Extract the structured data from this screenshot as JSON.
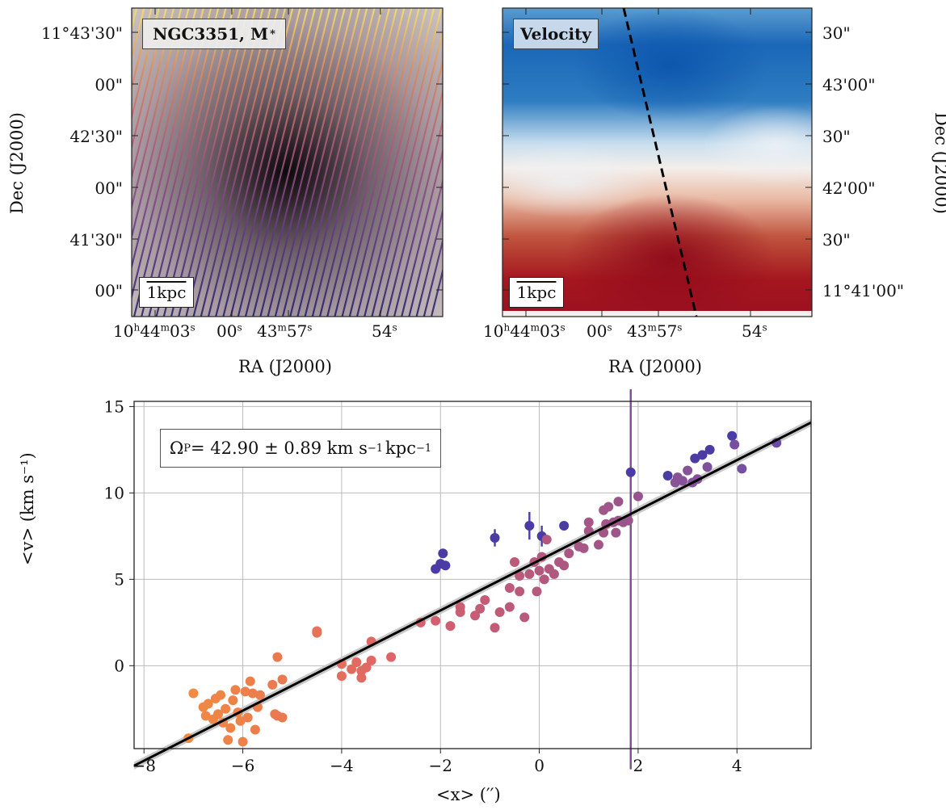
{
  "panels": {
    "left": {
      "label": "NGC3351, M",
      "label_sub": "*",
      "scalebar": "1kpc",
      "xlabel": "RA (J2000)",
      "ylabel": "Dec (J2000)",
      "xticks": [
        {
          "main": "10",
          "sup1": "h",
          "mid": "44",
          "sup2": "m",
          "end": "03",
          "sup3": "s"
        },
        {
          "main": "00",
          "sup1": "s"
        },
        {
          "main": "43",
          "sup1": "m",
          "mid": "57",
          "sup2": "s"
        },
        {
          "main": "54",
          "sup1": "s"
        }
      ],
      "yticks": [
        "11°43'30\"",
        "00\"",
        "42'30\"",
        "00\"",
        "41'30\"",
        "00\""
      ]
    },
    "right": {
      "label": "Velocity",
      "scalebar": "1kpc",
      "xlabel": "RA (J2000)",
      "ylabel": "Dec (J2000)",
      "xticks": [
        {
          "main": "10",
          "sup1": "h",
          "mid": "44",
          "sup2": "m",
          "end": "03",
          "sup3": "s"
        },
        {
          "main": "00",
          "sup1": "s"
        },
        {
          "main": "43",
          "sup1": "m",
          "mid": "57",
          "sup2": "s"
        },
        {
          "main": "54",
          "sup1": "s"
        }
      ],
      "yticks": [
        "30\"",
        "43'00\"",
        "30\"",
        "42'00\"",
        "30\"",
        "11°41'00\""
      ]
    }
  },
  "colors": {
    "velocity_negative": "#2166ac",
    "velocity_positive": "#b2182b",
    "fit_line": "#000000",
    "outlier_errorbar": "#7a4e8a"
  },
  "chart_data": {
    "type": "scatter",
    "title": "",
    "xlabel": "<x> (′′)",
    "ylabel": "<v> (km s⁻¹)",
    "xlim": [
      -8.2,
      5.5
    ],
    "ylim": [
      -4.8,
      15.3
    ],
    "xticks": [
      -8,
      -6,
      -4,
      -2,
      0,
      2,
      4
    ],
    "yticks": [
      0,
      5,
      10,
      15
    ],
    "grid": true,
    "annotation": {
      "pre": "Ω",
      "sub": "P",
      "mid": " = 42.90 ± 0.89 km s",
      "sup1": "−1",
      "post": "kpc",
      "sup2": "−1"
    },
    "fit_line": {
      "slope": 1.45,
      "intercept": 6.1,
      "band_halfwidth": 0.22
    },
    "points": [
      [
        -7.1,
        -4.2
      ],
      [
        -7.0,
        -1.6
      ],
      [
        -6.8,
        -2.4
      ],
      [
        -6.75,
        -2.9
      ],
      [
        -6.7,
        -2.2
      ],
      [
        -6.6,
        -3.1
      ],
      [
        -6.55,
        -1.9
      ],
      [
        -6.5,
        -2.8
      ],
      [
        -6.45,
        -1.7
      ],
      [
        -6.4,
        -3.3
      ],
      [
        -6.35,
        -2.5
      ],
      [
        -6.3,
        -4.3
      ],
      [
        -6.25,
        -3.6
      ],
      [
        -6.2,
        -2.0
      ],
      [
        -6.15,
        -1.4
      ],
      [
        -6.1,
        -2.7
      ],
      [
        -6.05,
        -3.2
      ],
      [
        -6.0,
        -4.4
      ],
      [
        -5.95,
        -1.5
      ],
      [
        -5.9,
        -3.0
      ],
      [
        -5.85,
        -0.9
      ],
      [
        -5.8,
        -1.6
      ],
      [
        -5.75,
        -3.7
      ],
      [
        -5.7,
        -2.4
      ],
      [
        -5.65,
        -1.7
      ],
      [
        -5.4,
        -1.1
      ],
      [
        -5.35,
        -2.8
      ],
      [
        -5.3,
        -2.9
      ],
      [
        -5.3,
        0.5
      ],
      [
        -5.2,
        -0.8
      ],
      [
        -5.2,
        -3.0
      ],
      [
        -4.5,
        1.9
      ],
      [
        -4.5,
        2.0
      ],
      [
        -4.0,
        -0.6
      ],
      [
        -4.0,
        0.1
      ],
      [
        -3.8,
        -0.2
      ],
      [
        -3.7,
        0.2
      ],
      [
        -3.6,
        -0.3
      ],
      [
        -3.5,
        -0.1
      ],
      [
        -3.6,
        -0.7
      ],
      [
        -3.4,
        0.3
      ],
      [
        -3.4,
        1.4
      ],
      [
        -3.0,
        0.5
      ],
      [
        -2.4,
        2.5
      ],
      [
        -2.1,
        2.6
      ],
      [
        -1.8,
        2.3
      ],
      [
        -1.6,
        3.1
      ],
      [
        -1.6,
        3.4
      ],
      [
        -1.3,
        2.9
      ],
      [
        -1.2,
        3.3
      ],
      [
        -1.1,
        3.8
      ],
      [
        -0.9,
        2.2
      ],
      [
        -0.8,
        3.1
      ],
      [
        -0.6,
        3.4
      ],
      [
        -0.6,
        4.5
      ],
      [
        -0.5,
        6.0
      ],
      [
        -0.4,
        5.2
      ],
      [
        -0.4,
        4.3
      ],
      [
        -0.3,
        2.8
      ],
      [
        -0.2,
        5.3
      ],
      [
        -0.1,
        6.0
      ],
      [
        -0.05,
        4.3
      ],
      [
        0.0,
        5.5
      ],
      [
        0.05,
        6.3
      ],
      [
        0.1,
        5.0
      ],
      [
        0.2,
        5.6
      ],
      [
        0.3,
        5.3
      ],
      [
        0.4,
        6.0
      ],
      [
        0.5,
        5.8
      ],
      [
        0.6,
        6.5
      ],
      [
        0.8,
        6.9
      ],
      [
        0.9,
        6.8
      ],
      [
        1.0,
        7.8
      ],
      [
        1.2,
        7.0
      ],
      [
        1.3,
        7.7
      ],
      [
        1.35,
        8.2
      ],
      [
        1.5,
        8.3
      ],
      [
        1.55,
        7.7
      ],
      [
        1.6,
        8.4
      ],
      [
        1.7,
        8.3
      ],
      [
        1.8,
        8.4
      ],
      [
        1.85,
        11.2
      ],
      [
        2.0,
        9.8
      ],
      [
        2.6,
        11.0
      ],
      [
        2.75,
        10.6
      ],
      [
        2.8,
        10.9
      ],
      [
        2.9,
        10.7
      ],
      [
        3.0,
        11.3
      ],
      [
        3.1,
        10.6
      ],
      [
        3.15,
        12.0
      ],
      [
        3.2,
        10.8
      ],
      [
        3.3,
        12.2
      ],
      [
        3.4,
        11.5
      ],
      [
        3.45,
        12.5
      ],
      [
        3.9,
        13.3
      ],
      [
        3.95,
        12.8
      ],
      [
        4.1,
        11.4
      ],
      [
        4.8,
        12.9
      ],
      [
        -2.1,
        5.6
      ],
      [
        -2.0,
        5.9
      ],
      [
        -1.9,
        5.8
      ],
      [
        -1.95,
        6.5
      ],
      [
        -0.9,
        7.4
      ],
      [
        -0.2,
        8.1
      ],
      [
        0.05,
        7.5
      ],
      [
        0.15,
        7.3
      ],
      [
        0.5,
        8.1
      ],
      [
        1.0,
        8.3
      ],
      [
        1.4,
        9.2
      ],
      [
        1.6,
        9.5
      ],
      [
        1.3,
        9.0
      ]
    ],
    "error_bars": [
      {
        "x": -0.9,
        "y": 7.4,
        "err": 0.5
      },
      {
        "x": -0.2,
        "y": 8.1,
        "err": 0.8
      },
      {
        "x": 0.05,
        "y": 7.5,
        "err": 0.6
      },
      {
        "x": 1.85,
        "y": 5.0,
        "err": 11.0
      }
    ]
  }
}
